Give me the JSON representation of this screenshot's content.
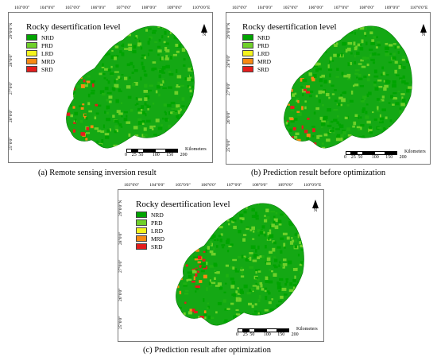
{
  "map_panels": [
    {
      "id": "a",
      "legend_title": "Rocky desertification level",
      "caption": "(a) Remote sensing inversion result",
      "top_ticks": [
        "103°0'0\"",
        "104°0'0\"",
        "105°0'0\"",
        "106°0'0\"",
        "107°0'0\"",
        "108°0'0\"",
        "109°0'0\"",
        "110°0'0\"E"
      ],
      "left_ticks": [
        "29°0'0\"N",
        "28°0'0\"",
        "27°0'0\"",
        "26°0'0\"",
        "25°0'0\""
      ]
    },
    {
      "id": "b",
      "legend_title": "Rocky desertification level",
      "caption": "(b) Prediction result before optimization",
      "top_ticks": [
        "103°0'0\"",
        "104°0'0\"",
        "105°0'0\"",
        "106°0'0\"",
        "107°0'0\"",
        "108°0'0\"",
        "109°0'0\"",
        "110°0'0\"E"
      ],
      "left_ticks": [
        "29°0'0\"N",
        "28°0'0\"",
        "27°0'0\"",
        "26°0'0\"",
        "25°0'0\""
      ]
    },
    {
      "id": "c",
      "legend_title": "Rocky desertification level",
      "caption": "(c) Prediction result after optimization",
      "top_ticks": [
        "103°0'0\"",
        "104°0'0\"",
        "105°0'0\"",
        "106°0'0\"",
        "107°0'0\"",
        "108°0'0\"",
        "109°0'0\"",
        "110°0'0\"E"
      ],
      "left_ticks": [
        "29°0'0\"N",
        "28°0'0\"",
        "27°0'0\"",
        "26°0'0\"",
        "25°0'0\""
      ]
    }
  ],
  "legend_items": [
    {
      "label": "NRD",
      "color": "#00a400"
    },
    {
      "label": "PRD",
      "color": "#6fd02a"
    },
    {
      "label": "LRD",
      "color": "#f4f41e"
    },
    {
      "label": "MRD",
      "color": "#f88a14"
    },
    {
      "label": "SRD",
      "color": "#e51d1d"
    }
  ],
  "scale_bar": {
    "numbers": [
      "0",
      "25",
      "50",
      "100",
      "150",
      "200"
    ],
    "unit": "Kilometers"
  },
  "north_arrow": {
    "label": "N"
  }
}
